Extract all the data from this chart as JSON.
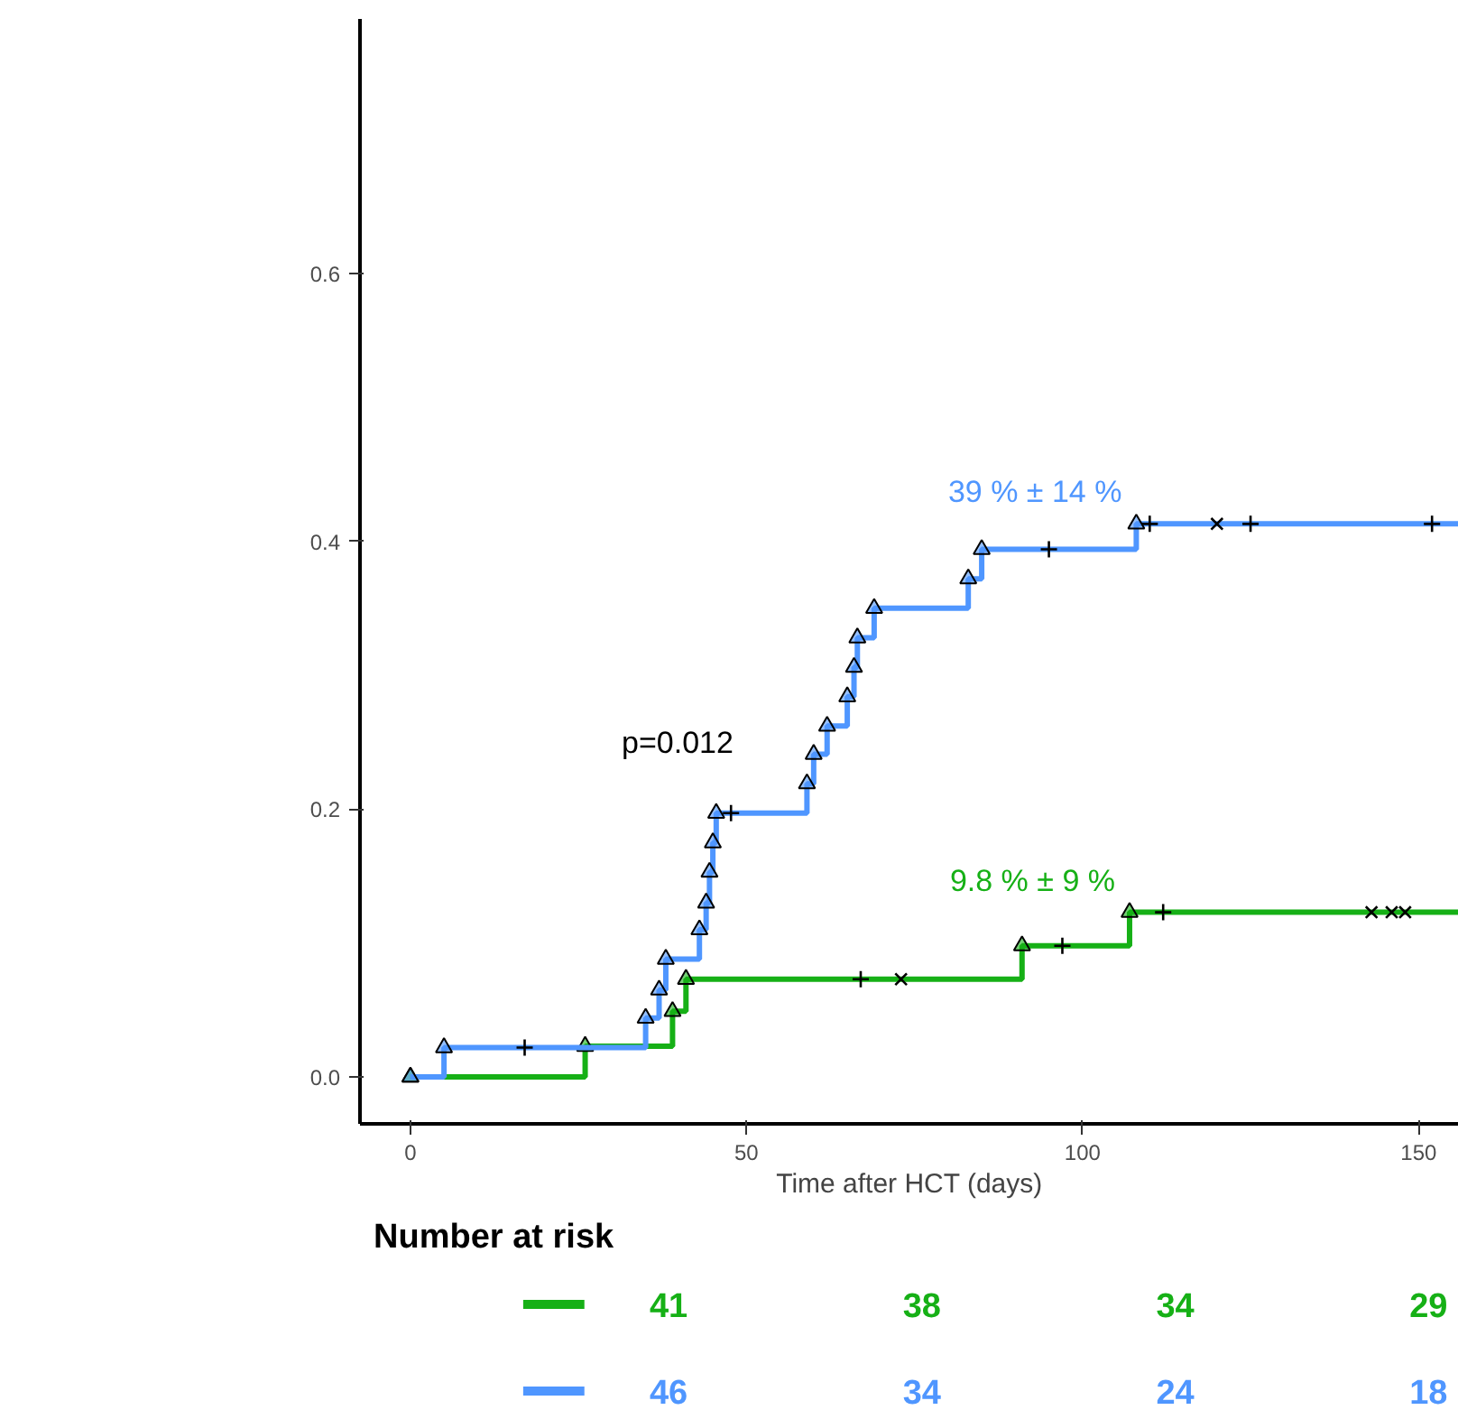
{
  "chart_data": {
    "type": "step",
    "xlabel": "Time after HCT (days)",
    "xlim": [
      -7.5,
      156
    ],
    "xticks": [
      0,
      50,
      100,
      150
    ],
    "ylim": [
      -0.035,
      0.79
    ],
    "yticks": [
      {
        "value": 0,
        "label": "0.0"
      },
      0.2,
      0.4,
      0.6
    ],
    "grid": false,
    "series": [
      {
        "color": "#16b016",
        "marker": "triangle",
        "x": [
          0,
          26,
          39,
          41,
          91,
          107,
          156
        ],
        "values": [
          0,
          0.023,
          0.049,
          0.073,
          0.098,
          0.123,
          0.123
        ]
      },
      {
        "color": "#4f96ff",
        "marker": "triangle",
        "x": [
          0,
          5,
          35,
          37,
          38,
          43,
          44,
          44.5,
          45,
          45.5,
          59,
          60,
          62,
          65,
          66,
          66.5,
          69,
          83,
          85,
          108,
          156
        ],
        "values": [
          0,
          0.022,
          0.044,
          0.065,
          0.088,
          0.11,
          0.13,
          0.153,
          0.175,
          0.197,
          0.219,
          0.241,
          0.262,
          0.284,
          0.306,
          0.328,
          0.35,
          0.372,
          0.394,
          0.413,
          0.413
        ]
      },
      {
        "type": "scatter",
        "color": "#000000",
        "marker": "cross",
        "x": [
          17,
          47.7,
          95,
          110,
          125,
          152,
          67,
          97,
          112
        ],
        "values": [
          0.022,
          0.197,
          0.394,
          0.413,
          0.413,
          0.413,
          0.073,
          0.098,
          0.123
        ]
      },
      {
        "type": "scatter",
        "color": "#000000",
        "marker": "x",
        "x": [
          120,
          73,
          143,
          146,
          148
        ],
        "values": [
          0.413,
          0.073,
          0.123,
          0.123,
          0.123
        ]
      }
    ],
    "annotations": [
      "p=0.012",
      {
        "text": "39 % ± 14 %",
        "x": 108,
        "y": 0.413
      },
      {
        "text": "9.8 % ± 9 %",
        "x": 107,
        "y": 0.123
      },
      "Number at risk",
      "41",
      "38",
      "34",
      "29",
      "46",
      "34",
      "24",
      "18"
    ]
  }
}
